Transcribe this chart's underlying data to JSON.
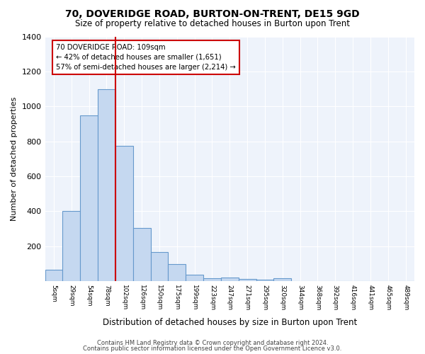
{
  "title1": "70, DOVERIDGE ROAD, BURTON-ON-TRENT, DE15 9GD",
  "title2": "Size of property relative to detached houses in Burton upon Trent",
  "xlabel": "Distribution of detached houses by size in Burton upon Trent",
  "ylabel": "Number of detached properties",
  "bar_labels": [
    "5sqm",
    "29sqm",
    "54sqm",
    "78sqm",
    "102sqm",
    "126sqm",
    "150sqm",
    "175sqm",
    "199sqm",
    "223sqm",
    "247sqm",
    "271sqm",
    "295sqm",
    "320sqm",
    "344sqm",
    "368sqm",
    "392sqm",
    "416sqm",
    "441sqm",
    "465sqm",
    "489sqm"
  ],
  "bar_heights": [
    65,
    400,
    950,
    1100,
    775,
    305,
    168,
    98,
    38,
    15,
    20,
    13,
    8,
    15,
    0,
    0,
    0,
    0,
    0,
    0,
    0
  ],
  "bar_color": "#c5d8f0",
  "bar_edge_color": "#6699cc",
  "bg_color": "#eef3fb",
  "grid_color": "#ffffff",
  "red_line_x_label": "102sqm",
  "annotation_line1": "70 DOVERIDGE ROAD: 109sqm",
  "annotation_line2": "← 42% of detached houses are smaller (1,651)",
  "annotation_line3": "57% of semi-detached houses are larger (2,214) →",
  "annotation_box_color": "#ffffff",
  "annotation_edge_color": "#cc0000",
  "ylim": [
    0,
    1400
  ],
  "yticks": [
    0,
    200,
    400,
    600,
    800,
    1000,
    1200,
    1400
  ],
  "footer1": "Contains HM Land Registry data © Crown copyright and database right 2024.",
  "footer2": "Contains public sector information licensed under the Open Government Licence v3.0.",
  "fig_bg": "#ffffff"
}
